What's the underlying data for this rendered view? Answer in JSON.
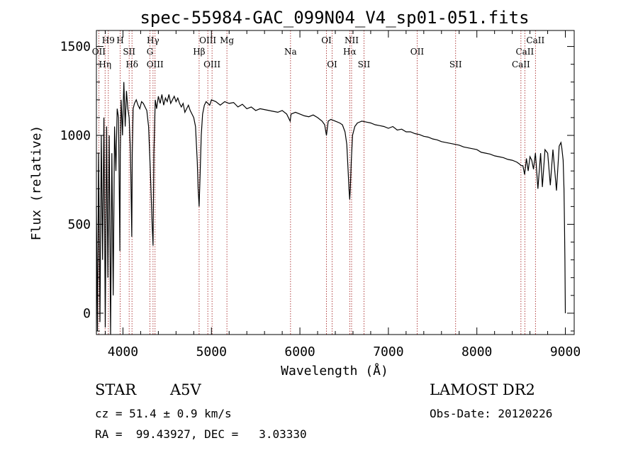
{
  "chart_data": {
    "type": "line",
    "title": "spec-55984-GAC_099N04_V4_sp01-051.fits",
    "xlabel": "Wavelength (Å)",
    "ylabel": "Flux (relative)",
    "xlim": [
      3700,
      9100
    ],
    "ylim": [
      -120,
      1590
    ],
    "xticks": [
      4000,
      5000,
      6000,
      7000,
      8000,
      9000
    ],
    "yticks": [
      0,
      500,
      1000,
      1500
    ],
    "grid": false,
    "line_color": "#000000",
    "marker_color": "#a01818",
    "series": [
      {
        "x": [
          3700,
          3712,
          3725,
          3740,
          3755,
          3770,
          3785,
          3800,
          3815,
          3830,
          3845,
          3860,
          3875,
          3890,
          3905,
          3920,
          3935,
          3950,
          3965,
          3970,
          3980,
          3995,
          4010,
          4025,
          4040,
          4055,
          4070,
          4085,
          4100,
          4105,
          4115,
          4130,
          4150,
          4170,
          4190,
          4210,
          4230,
          4250,
          4270,
          4290,
          4310,
          4330,
          4340,
          4350,
          4365,
          4380,
          4400,
          4420,
          4440,
          4460,
          4480,
          4500,
          4520,
          4540,
          4560,
          4580,
          4600,
          4620,
          4640,
          4660,
          4680,
          4700,
          4720,
          4740,
          4760,
          4780,
          4800,
          4820,
          4840,
          4850,
          4861,
          4872,
          4885,
          4900,
          4920,
          4940,
          4960,
          4980,
          5000,
          5050,
          5100,
          5150,
          5200,
          5250,
          5300,
          5350,
          5400,
          5450,
          5500,
          5550,
          5600,
          5650,
          5700,
          5750,
          5800,
          5850,
          5890,
          5900,
          5950,
          6000,
          6050,
          6100,
          6150,
          6200,
          6250,
          6280,
          6300,
          6320,
          6350,
          6400,
          6450,
          6480,
          6510,
          6530,
          6545,
          6555,
          6563,
          6570,
          6580,
          6595,
          6620,
          6650,
          6700,
          6750,
          6800,
          6850,
          6900,
          6950,
          7000,
          7050,
          7100,
          7150,
          7200,
          7250,
          7300,
          7350,
          7400,
          7450,
          7500,
          7550,
          7600,
          7650,
          7700,
          7750,
          7800,
          7850,
          7900,
          7950,
          8000,
          8050,
          8100,
          8150,
          8200,
          8250,
          8300,
          8350,
          8400,
          8450,
          8480,
          8500,
          8520,
          8540,
          8560,
          8580,
          8600,
          8620,
          8640,
          8662,
          8690,
          8720,
          8740,
          8770,
          8800,
          8830,
          8860,
          8900,
          8930,
          8950,
          8960,
          8975,
          8985,
          8990,
          8995,
          9000
        ],
        "y": [
          600,
          -100,
          900,
          -50,
          1000,
          300,
          1100,
          -80,
          1050,
          200,
          1000,
          -120,
          900,
          100,
          1050,
          800,
          1150,
          1100,
          350,
          900,
          1200,
          1000,
          1300,
          1050,
          1250,
          1150,
          1100,
          900,
          430,
          900,
          1150,
          1180,
          1200,
          1170,
          1150,
          1190,
          1180,
          1160,
          1140,
          1050,
          800,
          500,
          380,
          900,
          1200,
          1150,
          1220,
          1180,
          1230,
          1170,
          1210,
          1190,
          1230,
          1180,
          1200,
          1220,
          1190,
          1210,
          1180,
          1160,
          1180,
          1130,
          1150,
          1170,
          1140,
          1120,
          1100,
          1050,
          850,
          700,
          600,
          780,
          1000,
          1120,
          1170,
          1190,
          1180,
          1170,
          1200,
          1190,
          1170,
          1190,
          1180,
          1185,
          1160,
          1175,
          1150,
          1160,
          1140,
          1150,
          1145,
          1140,
          1135,
          1130,
          1140,
          1120,
          1080,
          1120,
          1130,
          1120,
          1110,
          1105,
          1115,
          1100,
          1080,
          1060,
          1000,
          1080,
          1090,
          1080,
          1070,
          1060,
          1020,
          950,
          800,
          700,
          640,
          700,
          850,
          1000,
          1050,
          1070,
          1080,
          1075,
          1070,
          1060,
          1055,
          1050,
          1040,
          1050,
          1030,
          1035,
          1020,
          1020,
          1010,
          1005,
          995,
          990,
          980,
          975,
          965,
          960,
          955,
          950,
          945,
          935,
          930,
          925,
          920,
          905,
          900,
          895,
          885,
          880,
          875,
          865,
          860,
          850,
          840,
          830,
          830,
          780,
          870,
          800,
          880,
          860,
          810,
          900,
          700,
          900,
          710,
          920,
          900,
          720,
          920,
          690,
          940,
          960,
          930,
          860,
          700,
          500,
          300,
          0
        ]
      }
    ],
    "lines": [
      {
        "label": "H9",
        "x": 3835
      },
      {
        "label": "OII",
        "x": 3727
      },
      {
        "label": "Hη",
        "x": 3798
      },
      {
        "label": "H",
        "x": 3968
      },
      {
        "label": "SII",
        "x": 4070
      },
      {
        "label": "Hδ",
        "x": 4102
      },
      {
        "label": "Hγ",
        "x": 4340
      },
      {
        "label": "G",
        "x": 4305
      },
      {
        "label": "OIII",
        "x": 4363
      },
      {
        "label": "OIII",
        "x": 4959
      },
      {
        "label": "Hβ",
        "x": 4861
      },
      {
        "label": "OIII",
        "x": 5007
      },
      {
        "label": "Mg",
        "x": 5175
      },
      {
        "label": "Na",
        "x": 5894
      },
      {
        "label": "OI",
        "x": 6364
      },
      {
        "label": "OI",
        "x": 6300
      },
      {
        "label": "Hα",
        "x": 6563
      },
      {
        "label": "SII",
        "x": 6724
      },
      {
        "label": "NII",
        "x": 6584
      },
      {
        "label": "OII",
        "x": 7325
      },
      {
        "label": "SII",
        "x": 7760
      },
      {
        "label": "CaII",
        "x": 8662
      },
      {
        "label": "CaII",
        "x": 8542
      },
      {
        "label": "CaII",
        "x": 8498
      }
    ]
  },
  "info": {
    "class_label": "STAR",
    "subclass": "A5V",
    "survey": "LAMOST DR2",
    "cz": "cz = 51.4 ± 0.9 km/s",
    "obs_date": "Obs-Date: 20120226",
    "coords": "RA =  99.43927, DEC =   3.03330"
  }
}
